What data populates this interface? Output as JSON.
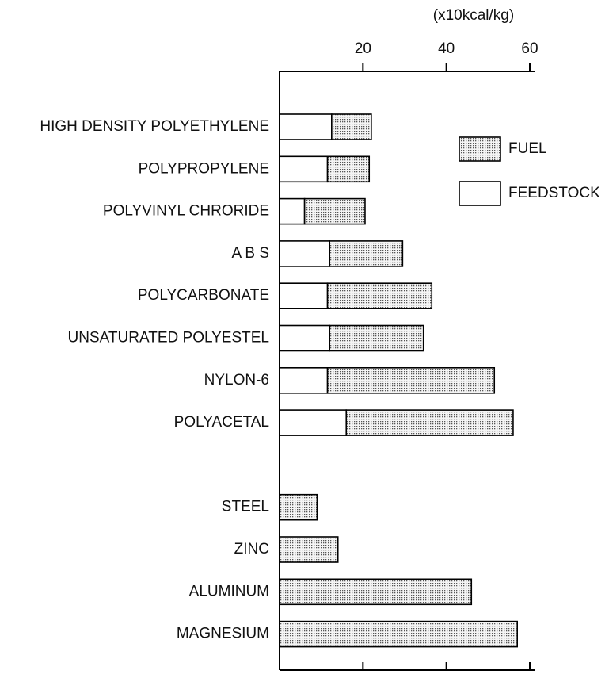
{
  "chart_data": {
    "type": "stacked_barh",
    "x_label": "(x10kcal/kg)",
    "categories": [
      "HIGH DENSITY POLYETHYLENE",
      "POLYPROPYLENE",
      "POLYVINYL CHRORIDE",
      "A B S",
      "POLYCARBONATE",
      "UNSATURATED POLYESTEL",
      "NYLON-6",
      "POLYACETAL",
      null,
      "STEEL",
      "ZINC",
      "ALUMINUM",
      "MAGNESIUM"
    ],
    "series": [
      {
        "name": "FEEDSTOCK",
        "color": "#ffffff",
        "values": [
          12.5,
          11.5,
          6,
          12,
          11.5,
          12,
          11.5,
          16,
          null,
          0,
          0,
          0,
          0
        ]
      },
      {
        "name": "FUEL",
        "color": "#c8c8c8",
        "values": [
          9.5,
          10,
          14.5,
          17.5,
          25,
          22.5,
          40,
          40,
          null,
          9,
          14,
          46,
          57
        ]
      }
    ],
    "xlim": [
      0,
      60
    ],
    "xticks": [
      20,
      40,
      60
    ]
  }
}
